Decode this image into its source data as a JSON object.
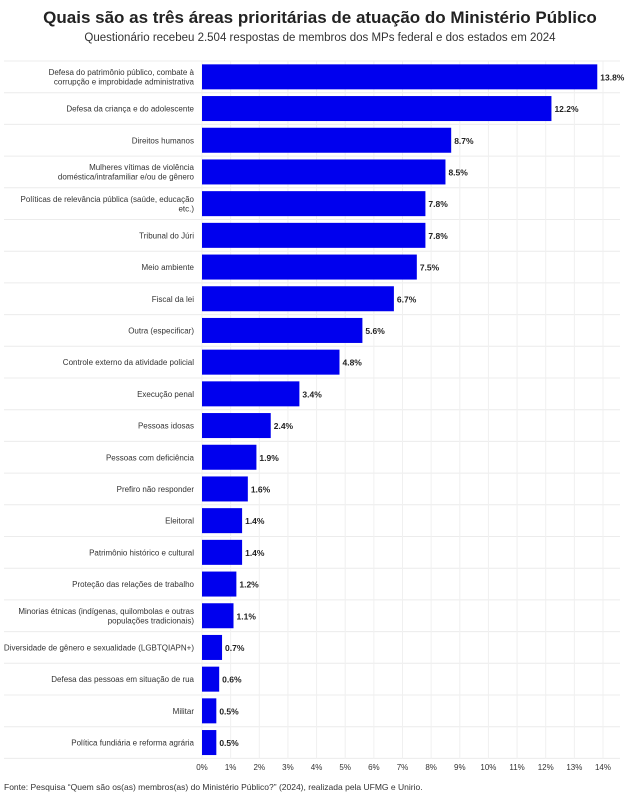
{
  "chart_data": {
    "type": "bar",
    "orientation": "horizontal",
    "title": "Quais são as três áreas prioritárias de atuação do Ministério Público",
    "subtitle": "Questionário recebeu 2.504 respostas de membros dos MPs federal e dos estados em 2024",
    "categories": [
      [
        "Defesa do patrimônio público, combate à",
        "corrupção e improbidade administrativa"
      ],
      [
        "Defesa da criança e do adolescente"
      ],
      [
        "Direitos humanos"
      ],
      [
        "Mulheres vítimas de violência",
        "doméstica/intrafamiliar e/ou de gênero"
      ],
      [
        "Políticas de relevância pública (saúde, educação",
        "etc.)"
      ],
      [
        "Tribunal do Júri"
      ],
      [
        "Meio ambiente"
      ],
      [
        "Fiscal da lei"
      ],
      [
        "Outra (especificar)"
      ],
      [
        "Controle externo da atividade policial"
      ],
      [
        "Execução penal"
      ],
      [
        "Pessoas idosas"
      ],
      [
        "Pessoas com deficiência"
      ],
      [
        "Prefiro não responder"
      ],
      [
        "Eleitoral"
      ],
      [
        "Patrimônio histórico e cultural"
      ],
      [
        "Proteção das relações de trabalho"
      ],
      [
        "Minorias étnicas (indígenas, quilombolas e outras",
        "populações tradicionais)"
      ],
      [
        "Diversidade de gênero e sexualidade (LGBTQIAPN+)"
      ],
      [
        "Defesa das pessoas em situação de rua"
      ],
      [
        "Militar"
      ],
      [
        "Política fundiária e reforma agrária"
      ]
    ],
    "values": [
      13.8,
      12.2,
      8.7,
      8.5,
      7.8,
      7.8,
      7.5,
      6.7,
      5.6,
      4.8,
      3.4,
      2.4,
      1.9,
      1.6,
      1.4,
      1.4,
      1.2,
      1.1,
      0.7,
      0.6,
      0.5,
      0.5
    ],
    "value_labels": [
      "13.8%",
      "12.2%",
      "8.7%",
      "8.5%",
      "7.8%",
      "7.8%",
      "7.5%",
      "6.7%",
      "5.6%",
      "4.8%",
      "3.4%",
      "2.4%",
      "1.9%",
      "1.6%",
      "1.4%",
      "1.4%",
      "1.2%",
      "1.1%",
      "0.7%",
      "0.6%",
      "0.5%",
      "0.5%"
    ],
    "xlim": [
      0,
      14
    ],
    "xticks": [
      "0%",
      "1%",
      "2%",
      "3%",
      "4%",
      "5%",
      "6%",
      "7%",
      "8%",
      "9%",
      "10%",
      "11%",
      "12%",
      "13%",
      "14%"
    ],
    "bar_color": "#0000ee",
    "grid": true
  },
  "source": "Fonte: Pesquisa “Quem são os(as) membros(as) do Ministério Público?” (2024), realizada pela UFMG e Unirio."
}
